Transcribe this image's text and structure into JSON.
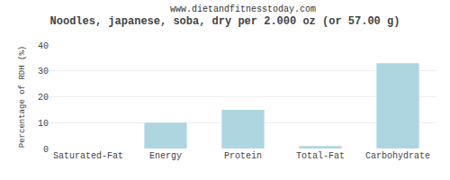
{
  "chart_data": {
    "type": "bar",
    "title": "Noodles, japanese, soba, dry per 2.000 oz (or 57.00 g)",
    "subtitle": "www.dietandfitnesstoday.com",
    "categories": [
      "Saturated-Fat",
      "Energy",
      "Protein",
      "Total-Fat",
      "Carbohydrate"
    ],
    "values": [
      0,
      10,
      15,
      1,
      33
    ],
    "color": "#aed6e0",
    "ylabel": "Percentage of RDH (%)",
    "ylim": [
      0,
      40
    ],
    "yticks": [
      0,
      10,
      20,
      30,
      40
    ],
    "grid": true
  }
}
